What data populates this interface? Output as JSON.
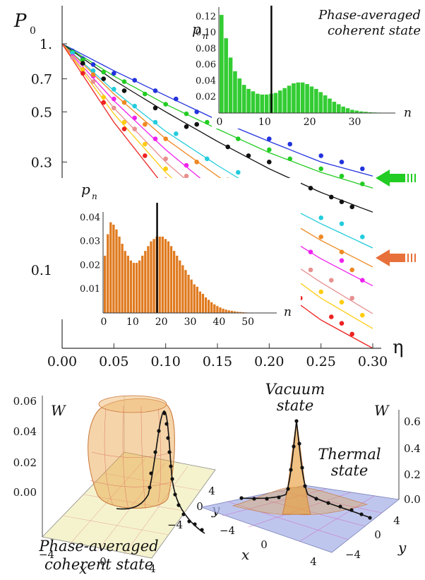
{
  "chart_data": [
    {
      "type": "scatter",
      "ylabel": "P",
      "ylabel_sub": "0",
      "xlabel": "η",
      "yscale": "log",
      "xlim": [
        0,
        0.3
      ],
      "ylim": [
        0.045,
        1.0
      ],
      "xticks": [
        "0.00",
        "0.05",
        "0.10",
        "0.15",
        "0.20",
        "0.25",
        "0.30"
      ],
      "yticks": [
        {
          "value": 1.0,
          "label": "1."
        },
        {
          "value": 0.7,
          "label": "0.7"
        },
        {
          "value": 0.5,
          "label": "0.5"
        },
        {
          "value": 0.3,
          "label": "0.3"
        },
        {
          "value": 0.1,
          "label": "0.1"
        }
      ],
      "arrow_colors": [
        "#22cc22",
        "#e8703a"
      ],
      "series": [
        {
          "color": "#2233dd",
          "curve": [
            [
              0,
              1.0
            ],
            [
              0.05,
              0.76
            ],
            [
              0.1,
              0.59
            ],
            [
              0.15,
              0.46
            ],
            [
              0.2,
              0.37
            ],
            [
              0.25,
              0.3
            ],
            [
              0.3,
              0.26
            ]
          ],
          "points": [
            [
              0.01,
              0.93
            ],
            [
              0.02,
              0.86
            ],
            [
              0.03,
              0.81
            ],
            [
              0.05,
              0.74
            ],
            [
              0.07,
              0.69
            ],
            [
              0.09,
              0.62
            ],
            [
              0.11,
              0.57
            ],
            [
              0.13,
              0.5
            ],
            [
              0.15,
              0.47
            ],
            [
              0.17,
              0.44
            ],
            [
              0.2,
              0.38
            ],
            [
              0.22,
              0.36
            ],
            [
              0.25,
              0.32
            ],
            [
              0.27,
              0.3
            ],
            [
              0.29,
              0.28
            ]
          ]
        },
        {
          "color": "#22cc22",
          "curve": [
            [
              0,
              1.0
            ],
            [
              0.05,
              0.72
            ],
            [
              0.1,
              0.54
            ],
            [
              0.15,
              0.42
            ],
            [
              0.2,
              0.33
            ],
            [
              0.25,
              0.27
            ],
            [
              0.3,
              0.23
            ]
          ],
          "points": [
            [
              0.01,
              0.92
            ],
            [
              0.02,
              0.85
            ],
            [
              0.04,
              0.75
            ],
            [
              0.06,
              0.68
            ],
            [
              0.08,
              0.6
            ],
            [
              0.1,
              0.54
            ],
            [
              0.12,
              0.49
            ],
            [
              0.14,
              0.45
            ],
            [
              0.17,
              0.38
            ],
            [
              0.2,
              0.34
            ],
            [
              0.22,
              0.31
            ],
            [
              0.25,
              0.28
            ],
            [
              0.27,
              0.26
            ],
            [
              0.29,
              0.24
            ]
          ]
        },
        {
          "color": "#111111",
          "curve": [
            [
              0,
              1.0
            ],
            [
              0.05,
              0.69
            ],
            [
              0.1,
              0.5
            ],
            [
              0.15,
              0.37
            ],
            [
              0.2,
              0.28
            ],
            [
              0.25,
              0.22
            ],
            [
              0.3,
              0.18
            ]
          ],
          "points": [
            [
              0.02,
              0.82
            ],
            [
              0.04,
              0.7
            ],
            [
              0.06,
              0.62
            ],
            [
              0.09,
              0.52
            ],
            [
              0.12,
              0.43
            ],
            [
              0.13,
              0.44
            ],
            [
              0.16,
              0.35
            ],
            [
              0.18,
              0.32
            ],
            [
              0.2,
              0.3
            ],
            [
              0.24,
              0.23
            ],
            [
              0.26,
              0.21
            ],
            [
              0.27,
              0.2
            ],
            [
              0.28,
              0.19
            ]
          ]
        },
        {
          "color": "#22ccdd",
          "curve": [
            [
              0,
              1.0
            ],
            [
              0.05,
              0.62
            ],
            [
              0.1,
              0.41
            ],
            [
              0.15,
              0.29
            ],
            [
              0.2,
              0.21
            ],
            [
              0.25,
              0.16
            ],
            [
              0.3,
              0.125
            ]
          ],
          "points": [
            [
              0.01,
              0.91
            ],
            [
              0.03,
              0.76
            ],
            [
              0.05,
              0.63
            ],
            [
              0.07,
              0.53
            ],
            [
              0.09,
              0.45
            ],
            [
              0.11,
              0.4
            ],
            [
              0.14,
              0.31
            ],
            [
              0.17,
              0.27
            ],
            [
              0.2,
              0.22
            ],
            [
              0.22,
              0.2
            ],
            [
              0.25,
              0.17
            ],
            [
              0.27,
              0.16
            ],
            [
              0.29,
              0.14
            ]
          ]
        },
        {
          "color": "#ee22ee",
          "curve": [
            [
              0,
              1.0
            ],
            [
              0.05,
              0.56
            ],
            [
              0.1,
              0.34
            ],
            [
              0.15,
              0.22
            ],
            [
              0.2,
              0.155
            ],
            [
              0.25,
              0.112
            ],
            [
              0.3,
              0.085
            ]
          ],
          "points": [
            [
              0.01,
              0.88
            ],
            [
              0.03,
              0.72
            ],
            [
              0.05,
              0.57
            ],
            [
              0.07,
              0.47
            ],
            [
              0.09,
              0.38
            ],
            [
              0.12,
              0.29
            ],
            [
              0.15,
              0.23
            ],
            [
              0.18,
              0.18
            ],
            [
              0.21,
              0.15
            ],
            [
              0.24,
              0.12
            ],
            [
              0.27,
              0.11
            ],
            [
              0.29,
              0.09
            ]
          ]
        },
        {
          "color": "#ee8822",
          "curve": [
            [
              0,
              1.0
            ],
            [
              0.05,
              0.6
            ],
            [
              0.1,
              0.38
            ],
            [
              0.15,
              0.26
            ],
            [
              0.2,
              0.185
            ],
            [
              0.25,
              0.135
            ],
            [
              0.3,
              0.103
            ]
          ],
          "points": [
            [
              0.03,
              0.73
            ],
            [
              0.06,
              0.55
            ],
            [
              0.08,
              0.44
            ],
            [
              0.1,
              0.38
            ],
            [
              0.13,
              0.3
            ],
            [
              0.16,
              0.25
            ],
            [
              0.2,
              0.21
            ],
            [
              0.21,
              0.18
            ],
            [
              0.22,
              0.15
            ],
            [
              0.25,
              0.14
            ],
            [
              0.27,
              0.12
            ],
            [
              0.28,
              0.1
            ]
          ]
        },
        {
          "color": "#e89090",
          "curve": [
            [
              0,
              1.0
            ],
            [
              0.05,
              0.52
            ],
            [
              0.1,
              0.3
            ],
            [
              0.15,
              0.19
            ],
            [
              0.2,
              0.125
            ],
            [
              0.25,
              0.088
            ],
            [
              0.3,
              0.064
            ]
          ],
          "points": [
            [
              0.01,
              0.87
            ],
            [
              0.03,
              0.68
            ],
            [
              0.05,
              0.52
            ],
            [
              0.07,
              0.42
            ],
            [
              0.1,
              0.31
            ],
            [
              0.12,
              0.26
            ],
            [
              0.15,
              0.2
            ],
            [
              0.18,
              0.15
            ],
            [
              0.21,
              0.12
            ],
            [
              0.24,
              0.1
            ],
            [
              0.26,
              0.09
            ],
            [
              0.28,
              0.075
            ]
          ]
        },
        {
          "color": "#ffcc11",
          "curve": [
            [
              0,
              1.0
            ],
            [
              0.05,
              0.49
            ],
            [
              0.1,
              0.27
            ],
            [
              0.15,
              0.165
            ],
            [
              0.2,
              0.11
            ],
            [
              0.25,
              0.075
            ],
            [
              0.3,
              0.055
            ]
          ],
          "points": [
            [
              0.02,
              0.77
            ],
            [
              0.04,
              0.58
            ],
            [
              0.06,
              0.45
            ],
            [
              0.08,
              0.36
            ],
            [
              0.1,
              0.28
            ],
            [
              0.13,
              0.21
            ],
            [
              0.16,
              0.16
            ],
            [
              0.19,
              0.125
            ],
            [
              0.22,
              0.1
            ],
            [
              0.25,
              0.08
            ],
            [
              0.27,
              0.072
            ],
            [
              0.29,
              0.063
            ]
          ]
        },
        {
          "color": "#ee2222",
          "curve": [
            [
              0,
              1.0
            ],
            [
              0.05,
              0.45
            ],
            [
              0.1,
              0.23
            ],
            [
              0.15,
              0.135
            ],
            [
              0.2,
              0.088
            ],
            [
              0.25,
              0.06
            ],
            [
              0.3,
              0.045
            ]
          ],
          "points": [
            [
              0.02,
              0.74
            ],
            [
              0.04,
              0.55
            ],
            [
              0.06,
              0.42
            ],
            [
              0.08,
              0.32
            ],
            [
              0.1,
              0.25
            ],
            [
              0.12,
              0.2
            ],
            [
              0.15,
              0.15
            ],
            [
              0.18,
              0.115
            ],
            [
              0.2,
              0.095
            ],
            [
              0.23,
              0.075
            ],
            [
              0.26,
              0.062
            ],
            [
              0.27,
              0.058
            ],
            [
              0.28,
              0.052
            ]
          ]
        }
      ]
    },
    {
      "type": "bar",
      "title": "Phase-averaged\ncoherent state",
      "ylabel": "p",
      "ylabel_sub": "n",
      "xlabel": "n",
      "color": "#33cc33",
      "marker_n": 11.5,
      "ylim": [
        0,
        0.13
      ],
      "xlim": [
        0,
        39
      ],
      "yticks": [
        "0.12",
        "0.10",
        "0.08",
        "0.06",
        "0.04",
        "0.02"
      ],
      "xticks": [
        "0",
        "10",
        "20",
        "30"
      ],
      "values": [
        0.122,
        0.093,
        0.069,
        0.052,
        0.043,
        0.035,
        0.03,
        0.027,
        0.024,
        0.023,
        0.023,
        0.024,
        0.025,
        0.028,
        0.031,
        0.034,
        0.037,
        0.038,
        0.038,
        0.036,
        0.033,
        0.03,
        0.026,
        0.022,
        0.018,
        0.014,
        0.011,
        0.008,
        0.006,
        0.004,
        0.003,
        0.002,
        0.0015,
        0.001,
        0.0007,
        0.0005,
        0.0003,
        0.0002,
        0.0001
      ]
    },
    {
      "type": "bar",
      "ylabel": "p",
      "ylabel_sub": "n",
      "xlabel": "n",
      "color": "#e07a1e",
      "marker_n": 18.5,
      "ylim": [
        0,
        0.045
      ],
      "xlim": [
        0,
        60
      ],
      "yticks": [
        "0.04",
        "0.03",
        "0.02",
        "0.01"
      ],
      "xticks": [
        "0",
        "10",
        "20",
        "30",
        "40",
        "50"
      ],
      "values": [
        0.024,
        0.033,
        0.038,
        0.037,
        0.035,
        0.032,
        0.029,
        0.026,
        0.024,
        0.022,
        0.021,
        0.021,
        0.022,
        0.024,
        0.026,
        0.028,
        0.03,
        0.031,
        0.032,
        0.032,
        0.032,
        0.031,
        0.03,
        0.028,
        0.026,
        0.024,
        0.022,
        0.02,
        0.018,
        0.016,
        0.014,
        0.012,
        0.011,
        0.009,
        0.008,
        0.0065,
        0.0055,
        0.0045,
        0.0036,
        0.0029,
        0.0023,
        0.0018,
        0.0014,
        0.0011,
        0.0009,
        0.0007,
        0.0005,
        0.0004,
        0.0003,
        0.0002,
        0.00015,
        0.0001,
        8e-05,
        6e-05,
        4e-05,
        3e-05,
        2e-05,
        1e-05,
        1e-05,
        1e-05
      ]
    },
    {
      "type": "surface3d",
      "zlabel": "W",
      "xlabel": "x",
      "ylabel": "y",
      "zticks": [
        "0.06",
        "0.04",
        "0.02",
        "0.00"
      ],
      "xticks": [
        "−4",
        "0",
        "4"
      ],
      "yticks": [
        "4",
        "0",
        "−4"
      ],
      "caption": "Phase-averaged\ncoherent state",
      "surface_color": "#e8a040",
      "floor_color": "#f3f0c0"
    },
    {
      "type": "surface3d",
      "zlabel": "W",
      "xlabel": "x",
      "ylabel": "y",
      "zticks": [
        "0.6",
        "0.4",
        "0.2",
        "0.0"
      ],
      "xticks": [
        "−4",
        "0",
        "4"
      ],
      "yticks": [
        "4",
        "0",
        "−4"
      ],
      "label_vacuum": "Vacuum\nstate",
      "label_thermal": "Thermal\nstate",
      "surface_color": "#e8a040",
      "floor_color": "#a9b3e8"
    }
  ]
}
